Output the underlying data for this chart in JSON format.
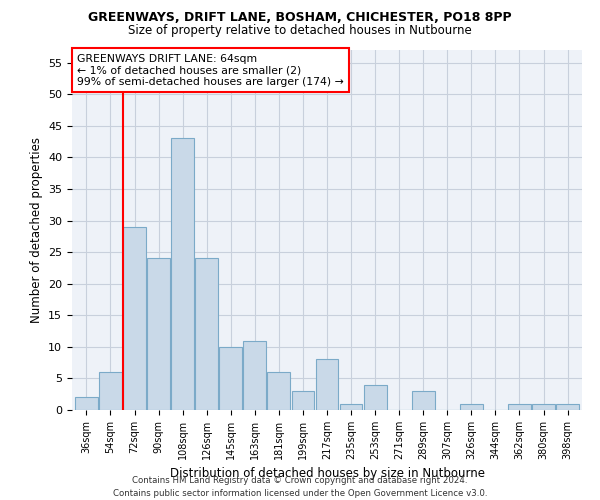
{
  "title1": "GREENWAYS, DRIFT LANE, BOSHAM, CHICHESTER, PO18 8PP",
  "title2": "Size of property relative to detached houses in Nutbourne",
  "xlabel": "Distribution of detached houses by size in Nutbourne",
  "ylabel": "Number of detached properties",
  "categories": [
    "36sqm",
    "54sqm",
    "72sqm",
    "90sqm",
    "108sqm",
    "126sqm",
    "145sqm",
    "163sqm",
    "181sqm",
    "199sqm",
    "217sqm",
    "235sqm",
    "253sqm",
    "271sqm",
    "289sqm",
    "307sqm",
    "326sqm",
    "344sqm",
    "362sqm",
    "380sqm",
    "398sqm"
  ],
  "values": [
    2,
    6,
    29,
    24,
    43,
    24,
    10,
    11,
    6,
    3,
    8,
    1,
    4,
    0,
    3,
    0,
    1,
    0,
    1,
    1,
    1
  ],
  "bar_color": "#c9d9e8",
  "bar_edge_color": "#7baac8",
  "ylim": [
    0,
    57
  ],
  "yticks": [
    0,
    5,
    10,
    15,
    20,
    25,
    30,
    35,
    40,
    45,
    50,
    55
  ],
  "red_line_x": 1.5,
  "annotation_line1": "GREENWAYS DRIFT LANE: 64sqm",
  "annotation_line2": "← 1% of detached houses are smaller (2)",
  "annotation_line3": "99% of semi-detached houses are larger (174) →",
  "footer1": "Contains HM Land Registry data © Crown copyright and database right 2024.",
  "footer2": "Contains public sector information licensed under the Open Government Licence v3.0.",
  "bg_color": "#eef2f8",
  "grid_color": "#c8d0dc"
}
